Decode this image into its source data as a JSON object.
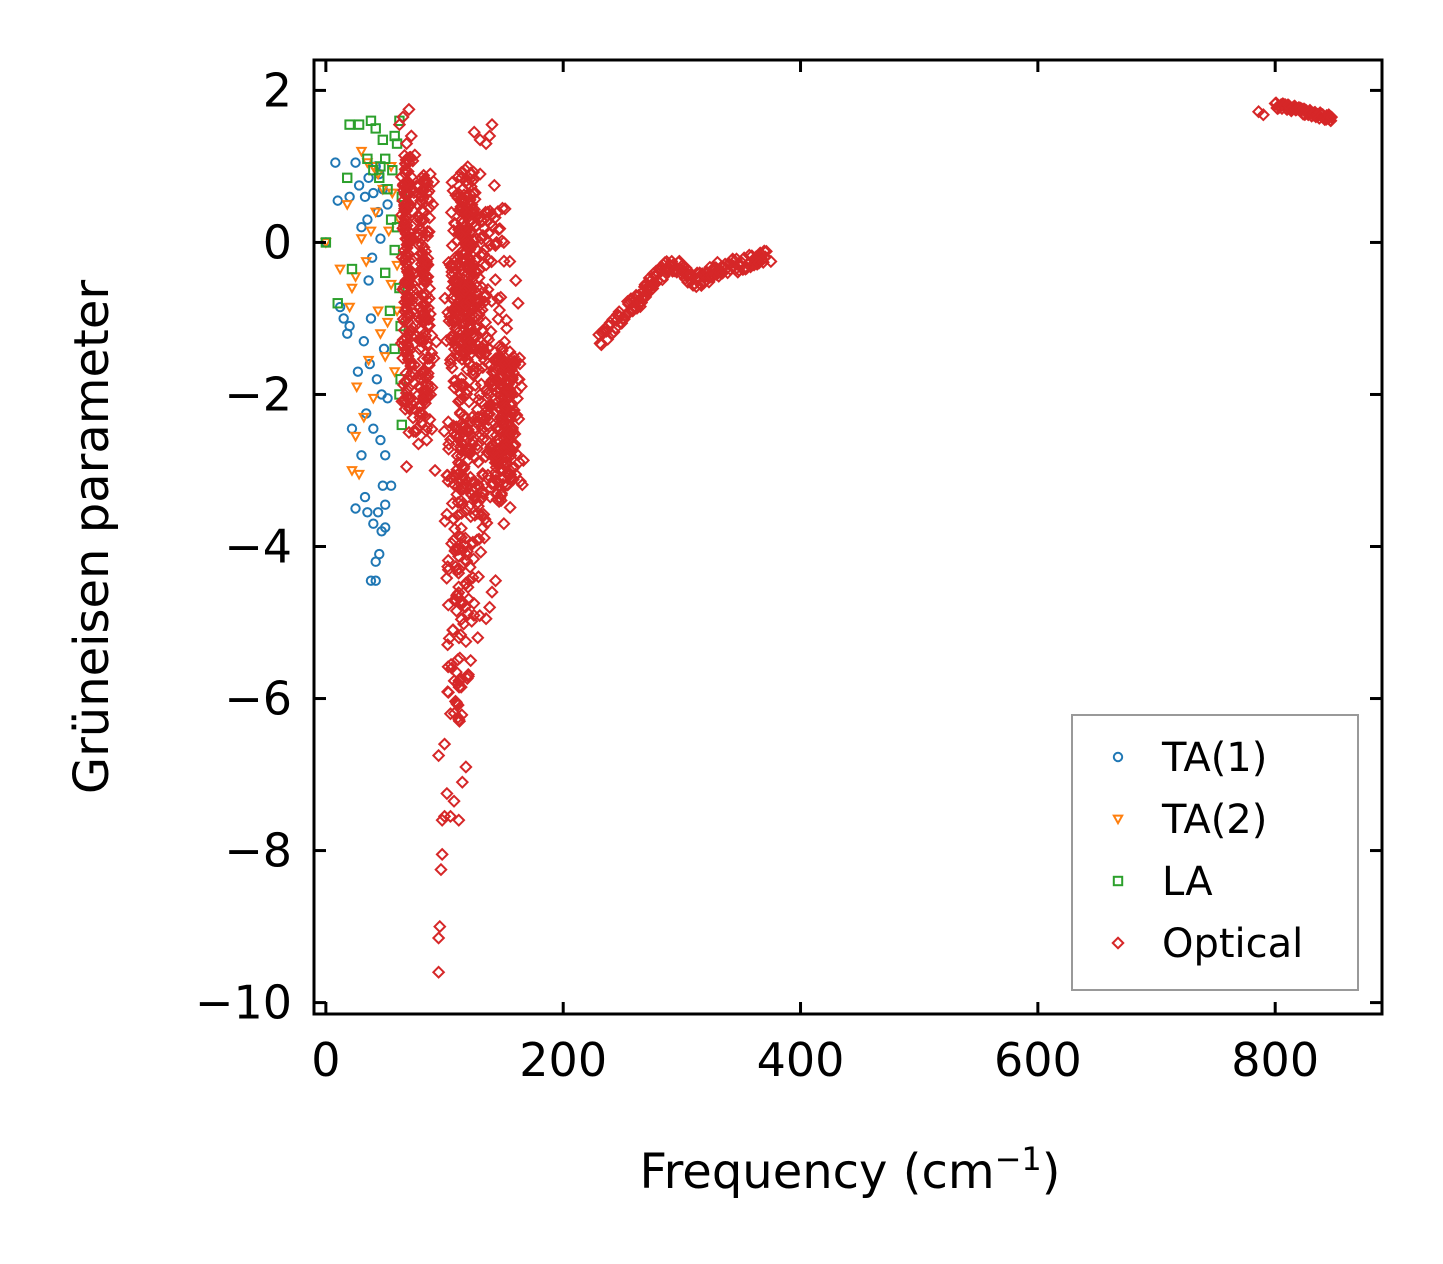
{
  "chart_data": {
    "type": "scatter",
    "xlabel": "Frequency (cm",
    "xlabel_sup": "−1",
    "xlabel_close": ")",
    "ylabel": "Grüneisen parameter",
    "xlim": [
      -10,
      890
    ],
    "ylim": [
      -10.15,
      2.4
    ],
    "xticks": [
      0,
      200,
      400,
      600,
      800
    ],
    "xtick_labels": [
      "0",
      "200",
      "400",
      "600",
      "800"
    ],
    "yticks": [
      2,
      0,
      -2,
      -4,
      -6,
      -8,
      -10
    ],
    "ytick_labels": [
      "2",
      "0",
      "−2",
      "−4",
      "−6",
      "−8",
      "−10"
    ],
    "legend_position": "lower-right",
    "series": [
      {
        "name": "TA(1)",
        "marker": "circle",
        "color": "#1f77b4",
        "points": [
          [
            0,
            0.0
          ],
          [
            8,
            1.05
          ],
          [
            10,
            0.55
          ],
          [
            12,
            -0.85
          ],
          [
            15,
            -1.0
          ],
          [
            18,
            -1.2
          ],
          [
            20,
            0.6
          ],
          [
            22,
            -2.45
          ],
          [
            25,
            1.05
          ],
          [
            25,
            -3.5
          ],
          [
            28,
            0.75
          ],
          [
            30,
            -2.8
          ],
          [
            32,
            -1.3
          ],
          [
            33,
            -3.35
          ],
          [
            35,
            0.3
          ],
          [
            35,
            -3.55
          ],
          [
            37,
            -1.6
          ],
          [
            38,
            -4.45
          ],
          [
            40,
            -2.45
          ],
          [
            40,
            -3.7
          ],
          [
            42,
            -4.2
          ],
          [
            42,
            -4.45
          ],
          [
            44,
            -3.55
          ],
          [
            45,
            -4.1
          ],
          [
            45,
            0.9
          ],
          [
            46,
            -2.6
          ],
          [
            47,
            -3.8
          ],
          [
            48,
            -3.2
          ],
          [
            50,
            -3.75
          ],
          [
            50,
            -3.45
          ],
          [
            52,
            -2.05
          ],
          [
            55,
            -3.2
          ],
          [
            30,
            0.2
          ],
          [
            33,
            0.6
          ],
          [
            36,
            -0.5
          ],
          [
            40,
            0.65
          ],
          [
            44,
            0.4
          ],
          [
            48,
            0.7
          ],
          [
            20,
            -1.1
          ],
          [
            38,
            -1.0
          ],
          [
            43,
            -1.8
          ],
          [
            47,
            -2.0
          ],
          [
            50,
            -2.8
          ],
          [
            36,
            0.85
          ],
          [
            42,
            1.0
          ],
          [
            27,
            -1.7
          ],
          [
            34,
            -2.25
          ],
          [
            46,
            0.05
          ],
          [
            52,
            0.5
          ],
          [
            39,
            -0.2
          ],
          [
            49,
            -1.4
          ]
        ]
      },
      {
        "name": "TA(2)",
        "marker": "triangle-down",
        "color": "#ff7f0e",
        "points": [
          [
            0,
            0.0
          ],
          [
            12,
            -0.35
          ],
          [
            18,
            0.5
          ],
          [
            20,
            -0.85
          ],
          [
            22,
            -0.6
          ],
          [
            22,
            -3.0
          ],
          [
            25,
            -0.45
          ],
          [
            25,
            -2.55
          ],
          [
            28,
            -3.05
          ],
          [
            30,
            1.2
          ],
          [
            30,
            0.05
          ],
          [
            32,
            -2.3
          ],
          [
            35,
            1.05
          ],
          [
            38,
            0.15
          ],
          [
            40,
            1.0
          ],
          [
            42,
            0.4
          ],
          [
            44,
            -0.9
          ],
          [
            46,
            -1.2
          ],
          [
            48,
            0.7
          ],
          [
            50,
            -1.5
          ],
          [
            52,
            -1.05
          ],
          [
            55,
            -0.55
          ],
          [
            55,
            1.0
          ],
          [
            58,
            -1.7
          ],
          [
            60,
            -0.3
          ],
          [
            62,
            0.3
          ],
          [
            36,
            -1.55
          ],
          [
            40,
            -2.05
          ],
          [
            44,
            0.9
          ],
          [
            56,
            0.65
          ],
          [
            60,
            -0.9
          ],
          [
            26,
            -1.9
          ],
          [
            34,
            -0.25
          ],
          [
            53,
            0.15
          ]
        ]
      },
      {
        "name": "LA",
        "marker": "square",
        "color": "#2ca02c",
        "points": [
          [
            0,
            0.0
          ],
          [
            10,
            -0.8
          ],
          [
            20,
            1.55
          ],
          [
            22,
            -0.35
          ],
          [
            28,
            1.55
          ],
          [
            35,
            1.1
          ],
          [
            38,
            1.6
          ],
          [
            40,
            0.95
          ],
          [
            42,
            1.5
          ],
          [
            45,
            0.85
          ],
          [
            48,
            1.35
          ],
          [
            50,
            1.1
          ],
          [
            52,
            0.7
          ],
          [
            55,
            0.3
          ],
          [
            58,
            -0.1
          ],
          [
            58,
            1.4
          ],
          [
            60,
            1.3
          ],
          [
            60,
            0.2
          ],
          [
            62,
            1.6
          ],
          [
            62,
            -0.6
          ],
          [
            63,
            -1.1
          ],
          [
            63,
            -1.8
          ],
          [
            64,
            -2.4
          ],
          [
            58,
            -1.4
          ],
          [
            56,
            0.95
          ],
          [
            54,
            -0.9
          ],
          [
            62,
            -2.0
          ],
          [
            64,
            0.6
          ],
          [
            46,
            1.0
          ],
          [
            50,
            -0.4
          ],
          [
            18,
            0.85
          ]
        ]
      },
      {
        "name": "Optical",
        "marker": "diamond",
        "color": "#d62728",
        "points": [
          [
            62,
            1.55
          ],
          [
            65,
            1.65
          ],
          [
            70,
            1.75
          ],
          [
            68,
            1.3
          ],
          [
            72,
            1.4
          ],
          [
            75,
            1.15
          ],
          [
            68,
            -2.95
          ],
          [
            70,
            -2.5
          ],
          [
            78,
            -2.65
          ],
          [
            85,
            -2.6
          ],
          [
            95,
            -9.6
          ],
          [
            95,
            -9.15
          ],
          [
            96,
            -9.0
          ],
          [
            97,
            -8.25
          ],
          [
            98,
            -8.05
          ],
          [
            98,
            -7.6
          ],
          [
            100,
            -7.55
          ],
          [
            102,
            -7.25
          ],
          [
            105,
            -7.55
          ],
          [
            108,
            -7.35
          ],
          [
            112,
            -7.6
          ],
          [
            115,
            -7.1
          ],
          [
            118,
            -6.9
          ],
          [
            95,
            -6.75
          ],
          [
            100,
            -6.6
          ],
          [
            105,
            -6.2
          ],
          [
            110,
            -6.05
          ],
          [
            114,
            -5.85
          ],
          [
            118,
            -5.25
          ],
          [
            122,
            -5.5
          ],
          [
            128,
            -5.2
          ],
          [
            135,
            -4.95
          ],
          [
            138,
            -4.8
          ],
          [
            140,
            -4.6
          ],
          [
            143,
            -4.45
          ],
          [
            125,
            1.45
          ],
          [
            130,
            1.35
          ],
          [
            135,
            1.3
          ],
          [
            138,
            1.4
          ],
          [
            140,
            1.55
          ],
          [
            130,
            0.9
          ],
          [
            142,
            0.75
          ],
          [
            150,
            0.0
          ],
          [
            155,
            -0.25
          ],
          [
            160,
            -0.5
          ],
          [
            162,
            -0.8
          ],
          [
            88,
            0.9
          ],
          [
            90,
            0.5
          ],
          [
            85,
            -1.0
          ],
          [
            92,
            -3.0
          ],
          [
            148,
            -3.3
          ],
          [
            150,
            -3.7
          ],
          [
            152,
            -2.8
          ],
          [
            158,
            -1.6
          ],
          [
            786,
            1.72
          ],
          [
            790,
            1.68
          ],
          [
            375,
            -0.25
          ],
          [
            370,
            -0.2
          ],
          [
            365,
            -0.27
          ]
        ],
        "clusters": [
          {
            "x_range": [
              62,
              75
            ],
            "y_range": [
              -2.2,
              1.15
            ]
          },
          {
            "x_range": [
              70,
              95
            ],
            "y_range": [
              -2.5,
              0.9
            ]
          },
          {
            "x_range": [
              95,
              125
            ],
            "y_range": [
              -6.3,
              -0.2
            ]
          },
          {
            "x_range": [
              100,
              140
            ],
            "y_range": [
              -5.0,
              0.6
            ]
          },
          {
            "x_range": [
              115,
              160
            ],
            "y_range": [
              -3.6,
              0.5
            ]
          },
          {
            "x_range": [
              130,
              175
            ],
            "y_range": [
              -3.2,
              -1.5
            ]
          },
          {
            "x_range": [
              100,
              135
            ],
            "y_range": [
              -1.5,
              1.0
            ]
          }
        ],
        "bands": [
          {
            "x": [
              230,
              245,
              255,
              265,
              272,
              280,
              290,
              300,
              310,
              320,
              330,
              345,
              360,
              372
            ],
            "y": [
              -1.3,
              -1.05,
              -0.85,
              -0.75,
              -0.55,
              -0.45,
              -0.3,
              -0.35,
              -0.5,
              -0.45,
              -0.35,
              -0.3,
              -0.25,
              -0.2
            ],
            "spread": 0.1
          },
          {
            "x": [
              800,
              810,
              820,
              830,
              840,
              848
            ],
            "y": [
              1.8,
              1.78,
              1.74,
              1.7,
              1.66,
              1.63
            ],
            "spread": 0.04
          }
        ]
      }
    ]
  }
}
